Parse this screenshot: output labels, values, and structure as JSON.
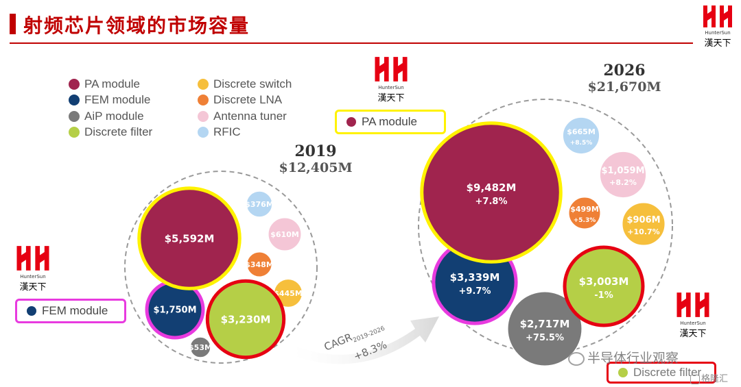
{
  "page": {
    "title": "射频芯片领域的市场容量"
  },
  "logo": {
    "brand": "HunterSun",
    "cn": "漢天下"
  },
  "colors": {
    "title_red": "#c00000",
    "pa": "#a0244e",
    "fem": "#123f73",
    "aip": "#7a7a7a",
    "filter": "#b5cf47",
    "switch": "#f6bf3c",
    "lna": "#ef8036",
    "tuner": "#f4c6d6",
    "rfic": "#b4d6f2",
    "highlight_yellow": "#fff200",
    "highlight_magenta": "#e83adf",
    "highlight_red": "#e60012"
  },
  "legend": [
    {
      "label": "PA module",
      "color": "#a0244e"
    },
    {
      "label": "FEM module",
      "color": "#123f73"
    },
    {
      "label": "AiP module",
      "color": "#7a7a7a"
    },
    {
      "label": "Discrete filter",
      "color": "#b5cf47"
    },
    {
      "label": "Discrete switch",
      "color": "#f6bf3c"
    },
    {
      "label": "Discrete LNA",
      "color": "#ef8036"
    },
    {
      "label": "Antenna tuner",
      "color": "#f4c6d6"
    },
    {
      "label": "RFIC",
      "color": "#b4d6f2"
    }
  ],
  "callouts": {
    "pa": {
      "label": "PA module"
    },
    "fem": {
      "label": "FEM module"
    },
    "filter": {
      "label": "Discrete filter"
    }
  },
  "cagr": {
    "label": "CAGR",
    "period": "2019-2026",
    "value": "+8.3%"
  },
  "watermark": {
    "text": "半导体行业观察",
    "site": "格隆汇"
  },
  "chart_data": [
    {
      "type": "bubble",
      "year": "2019",
      "total": "$12,405M",
      "unit": "USD millions",
      "categories": [
        "PA module",
        "FEM module",
        "AiP module",
        "Discrete filter",
        "Discrete switch",
        "Discrete LNA",
        "Antenna tuner",
        "RFIC"
      ],
      "values": [
        5592,
        1750,
        53,
        3230,
        445,
        348,
        610,
        376
      ],
      "labels": [
        "$5,592M",
        "$1,750M",
        "$53M",
        "$3,230M",
        "$445M",
        "$348M",
        "$610M",
        "$376M"
      ]
    },
    {
      "type": "bubble",
      "year": "2026",
      "total": "$21,670M",
      "unit": "USD millions",
      "categories": [
        "PA module",
        "FEM module",
        "AiP module",
        "Discrete filter",
        "Discrete switch",
        "Discrete LNA",
        "Antenna tuner",
        "RFIC"
      ],
      "values": [
        9482,
        3339,
        2717,
        3003,
        906,
        499,
        1059,
        665
      ],
      "labels": [
        "$9,482M",
        "$3,339M",
        "$2,717M",
        "$3,003M",
        "$906M",
        "$499M",
        "$1,059M",
        "$665M"
      ],
      "growth": [
        "+7.8%",
        "+9.7%",
        "+75.5%",
        "-1%",
        "+10.7%",
        "+5.3%",
        "+8.2%",
        "+8.5%"
      ]
    }
  ]
}
